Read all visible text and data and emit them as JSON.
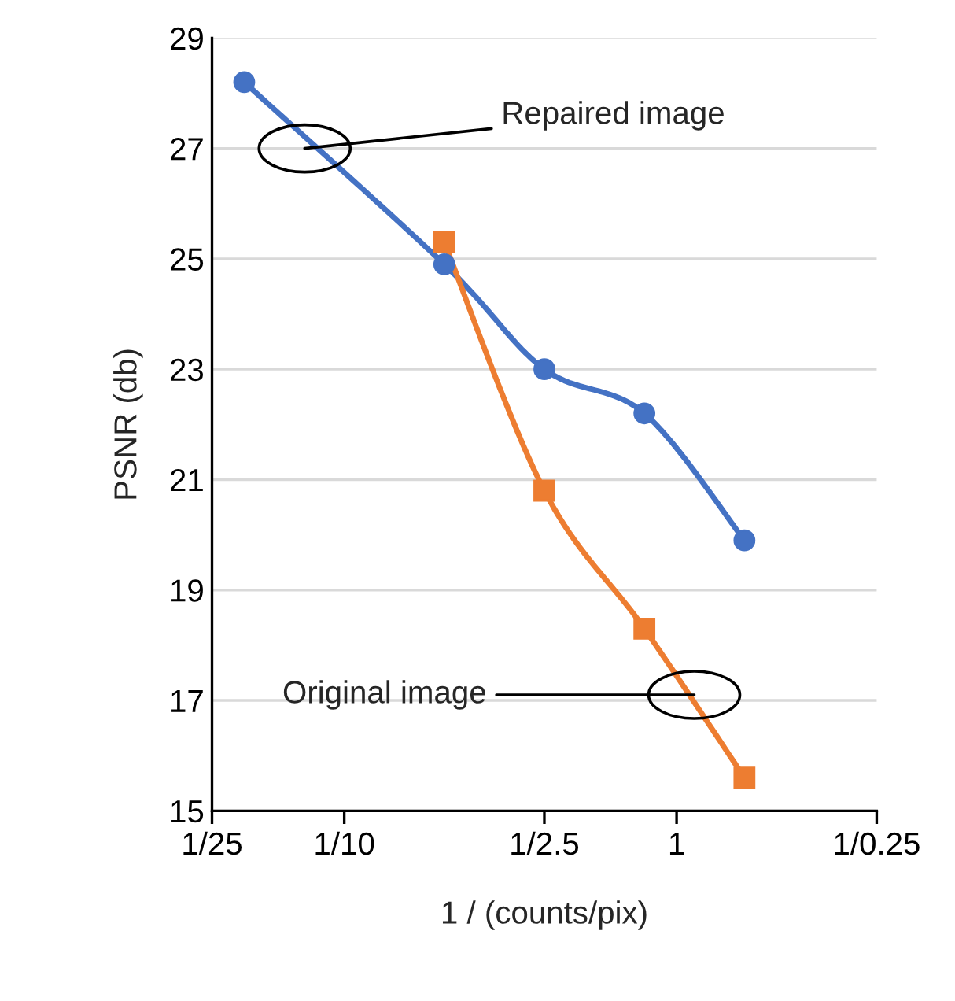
{
  "chart_data": {
    "type": "line",
    "xlabel": "1 / (counts/pix)",
    "ylabel": "PSNR (db)",
    "log": "x",
    "xlim": [
      0.04,
      4
    ],
    "xticks": [
      {
        "value": 0.04,
        "label": "1/25"
      },
      {
        "value": 0.1,
        "label": "1/10"
      },
      {
        "value": 0.4,
        "label": "1/2.5"
      },
      {
        "value": 1,
        "label": "1"
      },
      {
        "value": 4,
        "label": "1/0.25"
      }
    ],
    "ylim": [
      15,
      29
    ],
    "yticks": [
      15,
      17,
      19,
      21,
      23,
      25,
      27,
      29
    ],
    "grid": "y",
    "legend": false,
    "series": [
      {
        "color": "#4472c4",
        "marker": "circle",
        "x": [
          0.05,
          0.2,
          0.4,
          0.8,
          1.6
        ],
        "values": [
          28.2,
          24.9,
          23.0,
          22.2,
          19.9
        ]
      },
      {
        "color": "#ed7d31",
        "marker": "square",
        "x": [
          0.2,
          0.4,
          0.8,
          1.6
        ],
        "values": [
          25.3,
          20.8,
          18.3,
          15.6
        ]
      }
    ],
    "annotations": [
      {
        "text": "Repaired image",
        "x": 0.076,
        "y": 27.0
      },
      {
        "text": "Original image",
        "x": 1.13,
        "y": 17.1
      }
    ]
  }
}
